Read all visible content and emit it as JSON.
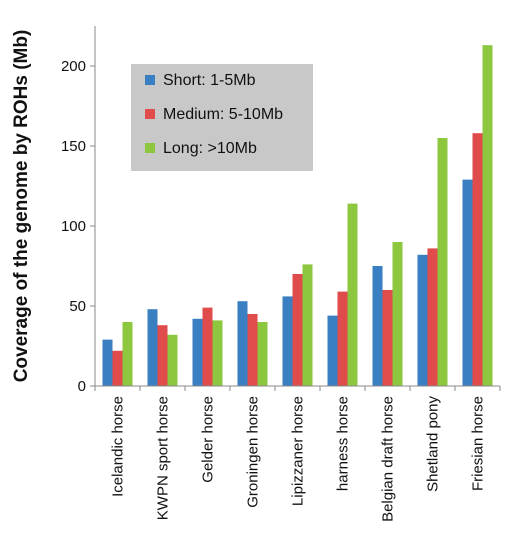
{
  "chart_data": {
    "type": "bar",
    "title": "",
    "xlabel": "",
    "ylabel": "Coverage of the genome by ROHs (Mb)",
    "ylim": [
      0,
      225
    ],
    "yticks": [
      0,
      50,
      100,
      150,
      200
    ],
    "grid": false,
    "legend_position": "top-left",
    "categories": [
      "Icelandic horse",
      "KWPN sport horse",
      "Gelder horse",
      "Groningen horse",
      "Lipizzaner horse",
      "harness horse",
      "Belgian draft horse",
      "Shetland pony",
      "Friesian horse"
    ],
    "series": [
      {
        "name": "Short: 1-5Mb",
        "color": "#3a7fc1",
        "values": [
          29,
          48,
          42,
          53,
          56,
          44,
          75,
          82,
          129
        ]
      },
      {
        "name": "Medium: 5-10Mb",
        "color": "#e04b4b",
        "values": [
          22,
          38,
          49,
          45,
          70,
          59,
          60,
          86,
          158
        ]
      },
      {
        "name": "Long: >10Mb",
        "color": "#8dc63f",
        "values": [
          40,
          32,
          41,
          40,
          76,
          114,
          90,
          155,
          213
        ]
      }
    ],
    "legend_background": "#c8c8c8"
  }
}
